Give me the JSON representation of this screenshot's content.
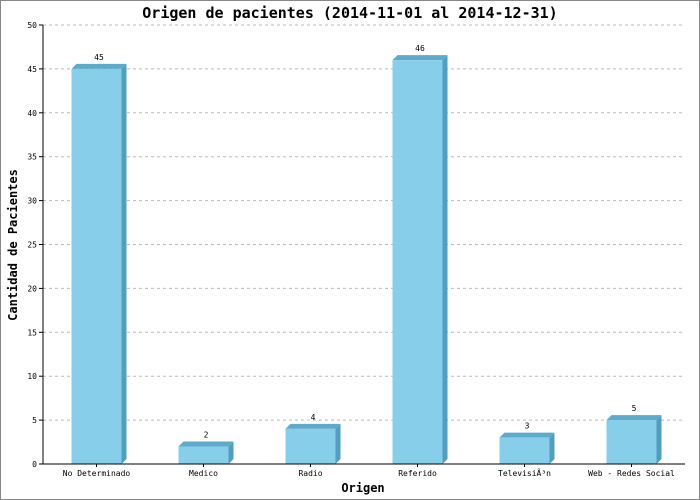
{
  "chart_data": {
    "type": "bar",
    "title": "Origen de pacientes  (2014-11-01 al 2014-12-31)",
    "xlabel": "Origen",
    "ylabel": "Cantidad de Pacientes",
    "categories": [
      "No Determinado",
      "Medico",
      "Radio",
      "Referido",
      "TelevisiÃ³n",
      "Web - Redes Social"
    ],
    "values": [
      45,
      2,
      4,
      46,
      3,
      5
    ],
    "ylim": [
      0,
      50
    ],
    "yticks": [
      0,
      5,
      10,
      15,
      20,
      25,
      30,
      35,
      40,
      45,
      50
    ],
    "grid": true,
    "bar_color": "#87CEEB",
    "bar_side_color": "#4F9FC0",
    "bar_top_color": "#5DAAC9"
  }
}
